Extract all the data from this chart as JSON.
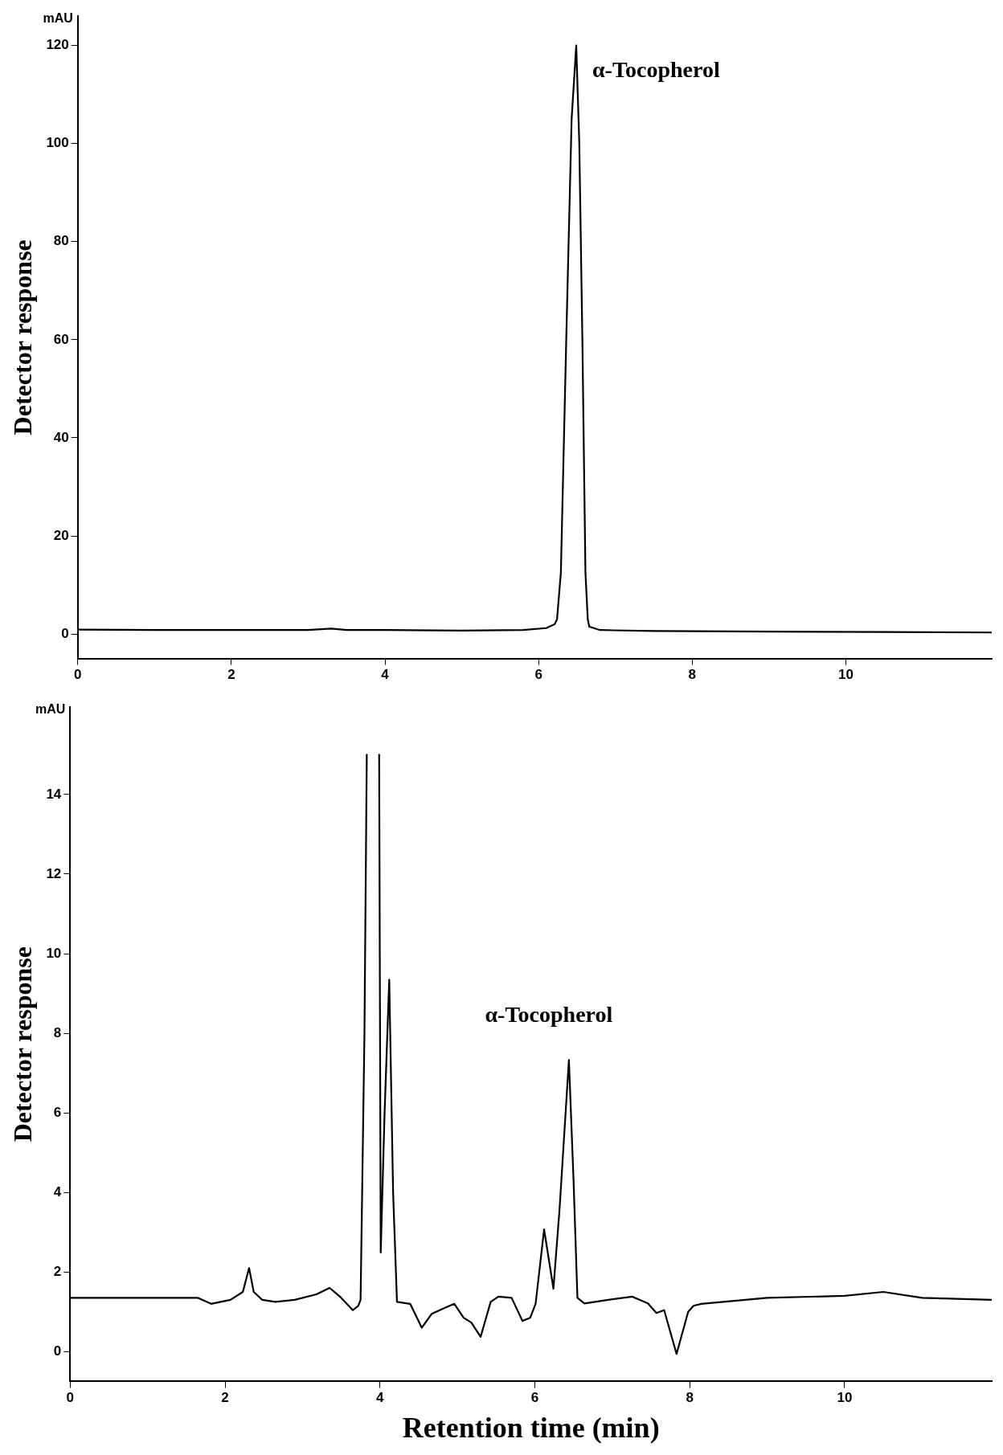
{
  "chart_data": [
    {
      "type": "line",
      "ylabel": "Detector response",
      "annotations": [
        "mAU",
        {
          "text": "α-Tocopherol",
          "x": 6.49,
          "y": 120
        }
      ],
      "xlim": [
        0,
        11.9
      ],
      "xticks": [
        0,
        2,
        4,
        6,
        8,
        10
      ],
      "ylim": [
        -5,
        126
      ],
      "yticks": [
        0,
        20,
        40,
        60,
        80,
        100,
        120
      ],
      "grid": false,
      "legend": false,
      "marker": "none",
      "line_style": "solid",
      "series": [
        {
          "color": "#000000",
          "x": [
            0,
            1,
            2,
            3,
            3.3,
            3.5,
            4,
            5,
            5.8,
            6.1,
            6.21,
            6.24,
            6.29,
            6.36,
            6.43,
            6.49,
            6.53,
            6.57,
            6.61,
            6.64,
            6.66,
            6.8,
            7.5,
            9,
            10.5,
            11.9
          ],
          "values": [
            0.9,
            0.8,
            0.8,
            0.8,
            1.1,
            0.8,
            0.8,
            0.7,
            0.8,
            1.2,
            2,
            3,
            12.5,
            60,
            105,
            120,
            100,
            60,
            12.5,
            3,
            1.5,
            0.8,
            0.6,
            0.5,
            0.4,
            0.3
          ]
        }
      ]
    },
    {
      "type": "line",
      "ylabel": "Detector response",
      "xlabel": "Retention time (min)",
      "annotations": [
        "mAU",
        {
          "text": "α-Tocopherol",
          "x": 6.44,
          "y": 7.33
        }
      ],
      "xlim": [
        0,
        11.9
      ],
      "xticks": [
        0,
        2,
        4,
        6,
        8,
        10
      ],
      "ylim": [
        -0.75,
        16.2
      ],
      "yticks": [
        0,
        2,
        4,
        6,
        8,
        10,
        12,
        14
      ],
      "grid": false,
      "legend": false,
      "marker": "none",
      "line_style": "solid",
      "series": [
        {
          "color": "#000000",
          "x": [
            0,
            1.65,
            1.82,
            2.07,
            2.23,
            2.31,
            2.37,
            2.48,
            2.65,
            2.9,
            3.18,
            3.35,
            3.49,
            3.65,
            3.72,
            3.75,
            3.8,
            3.83,
            3.85,
            3.97,
            3.99,
            4.01,
            4.06,
            4.12,
            4.17,
            4.22,
            4.39,
            4.54,
            4.67,
            4.84,
            4.96,
            5.08,
            5.18,
            5.3,
            5.43,
            5.53,
            5.7,
            5.84,
            5.94,
            6.01,
            6.12,
            6.24,
            6.32,
            6.44,
            6.5,
            6.55,
            6.64,
            6.95,
            7.26,
            7.46,
            7.57,
            7.67,
            7.83,
            7.98,
            8.05,
            8.15,
            9,
            10,
            10.5,
            11,
            11.9
          ],
          "values": [
            1.35,
            1.35,
            1.2,
            1.3,
            1.5,
            2.1,
            1.5,
            1.3,
            1.25,
            1.3,
            1.44,
            1.6,
            1.37,
            1.04,
            1.15,
            1.3,
            8,
            15,
            null,
            null,
            15,
            2.49,
            6,
            9.35,
            4,
            1.25,
            1.2,
            0.6,
            0.95,
            1.1,
            1.2,
            0.85,
            0.73,
            0.37,
            1.25,
            1.38,
            1.35,
            0.77,
            0.85,
            1.2,
            3.07,
            1.58,
            3.6,
            7.33,
            4.3,
            1.35,
            1.21,
            1.3,
            1.38,
            1.21,
            0.97,
            1.04,
            -0.06,
            1,
            1.15,
            1.2,
            1.35,
            1.4,
            1.5,
            1.35,
            1.3
          ]
        }
      ]
    }
  ]
}
